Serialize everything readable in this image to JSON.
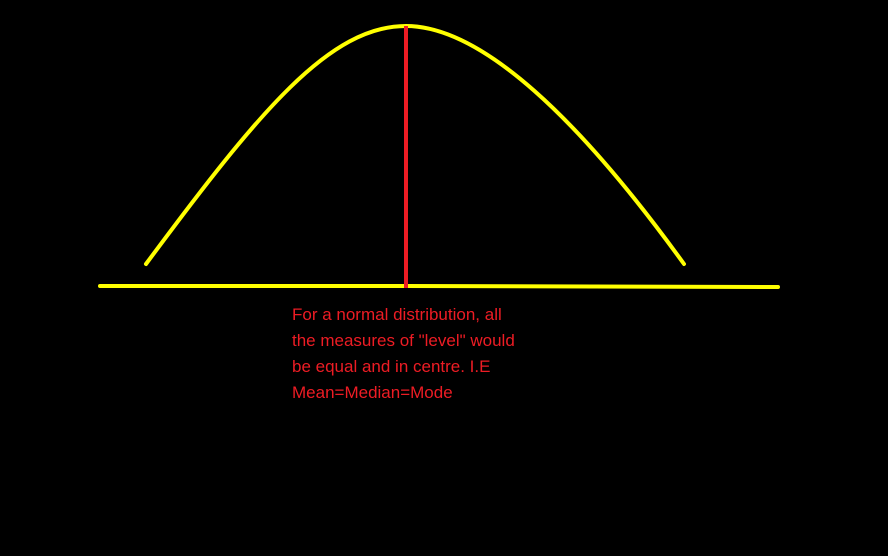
{
  "colors": {
    "background": "#000000",
    "curve": "#ffff00",
    "axis": "#ffff00",
    "centre_line": "#ed1c24",
    "annotation_text": "#ed1c24"
  },
  "annotation": {
    "lines": [
      "For a normal distribution, all",
      "the measures of \"level\" would",
      "be equal and in centre. I.E",
      "Mean=Median=Mode"
    ]
  }
}
